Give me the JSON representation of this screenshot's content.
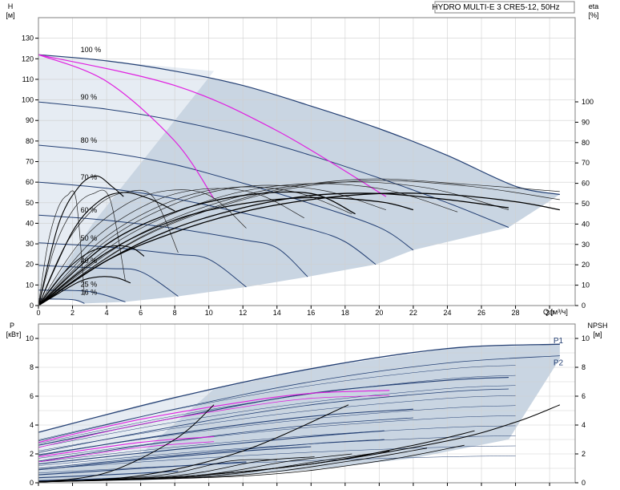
{
  "title": "HYDRO MULTI-E 3 CRE5-12, 50Hz",
  "colors": {
    "curve": "#1f3f6e",
    "speed_curve": "#233f73",
    "fill": "#c9d5e2",
    "fill_light": "#e6ecf3",
    "magenta": "#e020e0",
    "black": "#000000",
    "grid": "#cfcfcf",
    "frame": "#808080"
  },
  "chart_data": [
    {
      "type": "line",
      "panel": "head",
      "x_label": "Q [м³/ч]",
      "y_label_left": [
        "H",
        "[м]"
      ],
      "y_label_right": [
        "eta",
        "[%]"
      ],
      "xlim": [
        0,
        31.5
      ],
      "ylim": [
        0,
        140
      ],
      "x_ticks": [
        0,
        2,
        4,
        6,
        8,
        10,
        12,
        14,
        16,
        18,
        20,
        22,
        24,
        26,
        28,
        30
      ],
      "y_ticks": [
        0,
        10,
        20,
        30,
        40,
        50,
        60,
        70,
        80,
        90,
        100,
        110,
        120,
        130
      ],
      "eta_ticks": [
        0,
        10,
        20,
        30,
        40,
        50,
        60,
        70,
        80,
        90,
        100
      ],
      "speed_labels": [
        "100 %",
        "90 %",
        "80 %",
        "70 %",
        "60 %",
        "50 %",
        "40 %",
        "25 %",
        "16 %"
      ],
      "head_curves": [
        {
          "x": [
            0,
            4,
            8,
            12,
            16,
            20,
            24,
            28,
            30.6
          ],
          "y": [
            122,
            119,
            114,
            107,
            97,
            86,
            73,
            58,
            54
          ]
        },
        {
          "x": [
            0,
            4,
            8,
            12,
            16,
            20,
            24,
            27.6
          ],
          "y": [
            99,
            95.5,
            90,
            82.5,
            73,
            62,
            50,
            38
          ]
        },
        {
          "x": [
            0,
            4,
            8,
            12,
            16,
            20,
            22
          ],
          "y": [
            78,
            74.5,
            68.5,
            59.5,
            49.5,
            38,
            27
          ]
        },
        {
          "x": [
            0,
            4,
            8,
            12,
            16,
            18,
            19.8
          ],
          "y": [
            60,
            57,
            52,
            45,
            37,
            31,
            20
          ]
        },
        {
          "x": [
            0,
            4,
            8,
            12,
            14,
            15.8
          ],
          "y": [
            44,
            41.5,
            37.5,
            32,
            28,
            14
          ]
        },
        {
          "x": [
            0,
            4,
            8,
            10,
            12.2
          ],
          "y": [
            30.5,
            28.5,
            25,
            22.5,
            9
          ]
        },
        {
          "x": [
            0,
            4,
            6,
            8.2
          ],
          "y": [
            19.5,
            18,
            16.5,
            4.5
          ]
        },
        {
          "x": [
            0,
            3,
            5.1
          ],
          "y": [
            7.5,
            6.8,
            1.8
          ]
        },
        {
          "x": [
            0,
            2,
            2.7
          ],
          "y": [
            3.2,
            2.9,
            1
          ]
        }
      ],
      "system_curves": [
        {
          "x": [
            0,
            4,
            8,
            10.3
          ],
          "y": [
            122,
            109,
            80,
            52
          ]
        },
        {
          "x": [
            0,
            8,
            14,
            20.4
          ],
          "y": [
            122,
            107,
            85,
            53
          ]
        }
      ],
      "eta_peaks": [
        {
          "x_end": 30.6,
          "eta_end": 56
        },
        {
          "x_end": 30.6,
          "eta_end": 52
        },
        {
          "x_end": 27.6,
          "eta_end": 47
        },
        {
          "x_end": 24.6,
          "eta_end": 46
        },
        {
          "x_end": 20.4,
          "eta_end": 47
        },
        {
          "x_end": 18.4,
          "eta_end": 45
        },
        {
          "x_end": 15.6,
          "eta_end": 43
        },
        {
          "x_end": 12.2,
          "eta_end": 38
        },
        {
          "x_end": 8.2,
          "eta_end": 26
        },
        {
          "x_end": 5.1,
          "eta_end": 12
        },
        {
          "x_end": 2.7,
          "eta_end": 5
        }
      ],
      "hump_curves": [
        {
          "x": [
            0,
            1.2,
            2.4,
            3.4,
            4.3,
            5
          ],
          "y": [
            0,
            40,
            58,
            63,
            58,
            53
          ]
        },
        {
          "x": [
            0,
            2,
            3.6,
            5,
            6.5,
            8
          ],
          "y": [
            0,
            36,
            51,
            55,
            52,
            46
          ]
        },
        {
          "x": [
            0,
            1.2,
            2.5,
            3.6,
            4.6,
            5.4
          ],
          "y": [
            0,
            6,
            12,
            14,
            13.5,
            11
          ]
        },
        {
          "x": [
            0,
            1.5,
            3,
            4.5,
            5.5,
            6.2
          ],
          "y": [
            0,
            16,
            26,
            29,
            28,
            24
          ]
        }
      ]
    },
    {
      "type": "line",
      "panel": "power",
      "x_label": "",
      "y_label_left": [
        "P",
        "[кВт]"
      ],
      "y_label_right": [
        "NPSH",
        "[м]"
      ],
      "xlim": [
        0,
        31.5
      ],
      "ylim": [
        0,
        11
      ],
      "y_ticks": [
        0,
        2,
        4,
        6,
        8,
        10
      ],
      "npsh_ticks": [
        0,
        2,
        4,
        6,
        8,
        10
      ],
      "series_labels": [
        "P1",
        "P2"
      ],
      "p1_curves": [
        {
          "x": [
            0,
            8,
            16,
            24,
            30.6
          ],
          "y": [
            3.5,
            5.9,
            7.9,
            9.3,
            9.6
          ]
        },
        {
          "x": [
            0,
            8,
            16,
            24,
            27.6
          ],
          "y": [
            2.6,
            4.5,
            6.2,
            7.1,
            7.3
          ]
        },
        {
          "x": [
            0,
            8,
            16,
            22
          ],
          "y": [
            1.9,
            3.4,
            4.6,
            5.1
          ]
        },
        {
          "x": [
            0,
            8,
            16,
            20.3
          ],
          "y": [
            1.3,
            2.3,
            3.2,
            3.6
          ]
        },
        {
          "x": [
            0,
            6,
            12,
            16
          ],
          "y": [
            0.9,
            1.6,
            2.2,
            2.5
          ]
        },
        {
          "x": [
            0,
            6,
            12.2
          ],
          "y": [
            0.55,
            1.0,
            1.45
          ]
        },
        {
          "x": [
            0,
            4,
            8.2
          ],
          "y": [
            0.35,
            0.55,
            0.8
          ]
        },
        {
          "x": [
            0,
            3,
            5.2
          ],
          "y": [
            0.15,
            0.25,
            0.35
          ]
        }
      ],
      "p2_curves": [
        {
          "x": [
            0,
            8,
            16,
            24,
            30.6
          ],
          "y": [
            2.9,
            5.1,
            7.0,
            8.3,
            8.8
          ]
        },
        {
          "x": [
            0,
            8,
            16,
            24,
            27.6
          ],
          "y": [
            2.1,
            3.9,
            5.4,
            6.3,
            6.5
          ]
        },
        {
          "x": [
            0,
            8,
            16,
            22
          ],
          "y": [
            1.5,
            2.9,
            4.0,
            4.5
          ]
        },
        {
          "x": [
            0,
            8,
            16,
            20.3
          ],
          "y": [
            1.0,
            1.9,
            2.7,
            3.0
          ]
        }
      ],
      "magenta_curves": [
        {
          "x": [
            0,
            6,
            12,
            16,
            20.6
          ],
          "y": [
            2.8,
            4.4,
            5.6,
            6.2,
            6.4
          ]
        },
        {
          "x": [
            0,
            6,
            10.3
          ],
          "y": [
            1.8,
            2.8,
            3.2
          ]
        }
      ],
      "npsh_curves": [
        {
          "x": [
            0,
            8,
            16,
            24,
            28,
            30.6
          ],
          "y": [
            0.1,
            0.4,
            1.3,
            2.9,
            4.2,
            5.4
          ]
        },
        {
          "x": [
            0,
            8,
            16,
            22,
            25.6
          ],
          "y": [
            0.1,
            0.4,
            1.3,
            2.6,
            3.6
          ]
        },
        {
          "x": [
            0,
            6,
            12,
            18.2
          ],
          "y": [
            0.05,
            0.5,
            2.2,
            5.4
          ]
        },
        {
          "x": [
            0,
            4,
            8,
            10.3
          ],
          "y": [
            0.05,
            0.7,
            3.0,
            5.4
          ]
        }
      ]
    }
  ]
}
